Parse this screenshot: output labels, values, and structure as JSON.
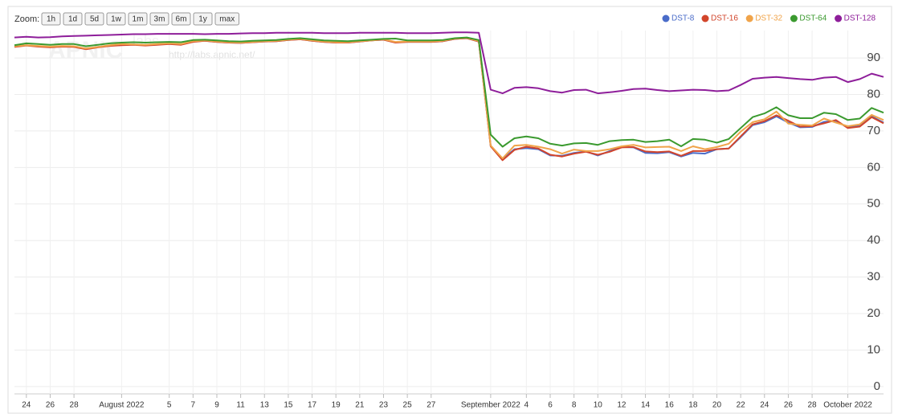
{
  "chart_data": {
    "type": "line",
    "zoom_label": "Zoom:",
    "zoom_buttons": [
      "1h",
      "1d",
      "5d",
      "1w",
      "1m",
      "3m",
      "6m",
      "1y",
      "max"
    ],
    "watermark": [
      "APNIC",
      "labs",
      "http://labs.apnic.net/"
    ],
    "legend": "top-right",
    "grid": true,
    "x": [
      "2022-07-23",
      "2022-07-24",
      "2022-07-25",
      "2022-07-26",
      "2022-07-27",
      "2022-07-28",
      "2022-07-29",
      "2022-07-30",
      "2022-07-31",
      "2022-08-01",
      "2022-08-02",
      "2022-08-03",
      "2022-08-04",
      "2022-08-05",
      "2022-08-06",
      "2022-08-07",
      "2022-08-08",
      "2022-08-09",
      "2022-08-10",
      "2022-08-11",
      "2022-08-12",
      "2022-08-13",
      "2022-08-14",
      "2022-08-15",
      "2022-08-16",
      "2022-08-17",
      "2022-08-18",
      "2022-08-19",
      "2022-08-20",
      "2022-08-21",
      "2022-08-22",
      "2022-08-23",
      "2022-08-24",
      "2022-08-25",
      "2022-08-26",
      "2022-08-27",
      "2022-08-28",
      "2022-08-29",
      "2022-08-30",
      "2022-08-31",
      "2022-09-01",
      "2022-09-02",
      "2022-09-03",
      "2022-09-04",
      "2022-09-05",
      "2022-09-06",
      "2022-09-07",
      "2022-09-08",
      "2022-09-09",
      "2022-09-10",
      "2022-09-11",
      "2022-09-12",
      "2022-09-13",
      "2022-09-14",
      "2022-09-15",
      "2022-09-16",
      "2022-09-17",
      "2022-09-18",
      "2022-09-19",
      "2022-09-20",
      "2022-09-21",
      "2022-09-22",
      "2022-09-23",
      "2022-09-24",
      "2022-09-25",
      "2022-09-26",
      "2022-09-27",
      "2022-09-28",
      "2022-09-29",
      "2022-09-30",
      "2022-10-01",
      "2022-10-02",
      "2022-10-03",
      "2022-10-04"
    ],
    "xlim": [
      "2022-07-23",
      "2022-10-04"
    ],
    "xticks": [
      {
        "value": "2022-07-24",
        "label": "24"
      },
      {
        "value": "2022-07-26",
        "label": "26"
      },
      {
        "value": "2022-07-28",
        "label": "28"
      },
      {
        "value": "2022-08-01",
        "label": "August 2022"
      },
      {
        "value": "2022-08-05",
        "label": "5"
      },
      {
        "value": "2022-08-07",
        "label": "7"
      },
      {
        "value": "2022-08-09",
        "label": "9"
      },
      {
        "value": "2022-08-11",
        "label": "11"
      },
      {
        "value": "2022-08-13",
        "label": "13"
      },
      {
        "value": "2022-08-15",
        "label": "15"
      },
      {
        "value": "2022-08-17",
        "label": "17"
      },
      {
        "value": "2022-08-19",
        "label": "19"
      },
      {
        "value": "2022-08-21",
        "label": "21"
      },
      {
        "value": "2022-08-23",
        "label": "23"
      },
      {
        "value": "2022-08-25",
        "label": "25"
      },
      {
        "value": "2022-08-27",
        "label": "27"
      },
      {
        "value": "2022-09-01",
        "label": "September 2022"
      },
      {
        "value": "2022-09-04",
        "label": "4"
      },
      {
        "value": "2022-09-06",
        "label": "6"
      },
      {
        "value": "2022-09-08",
        "label": "8"
      },
      {
        "value": "2022-09-10",
        "label": "10"
      },
      {
        "value": "2022-09-12",
        "label": "12"
      },
      {
        "value": "2022-09-14",
        "label": "14"
      },
      {
        "value": "2022-09-16",
        "label": "16"
      },
      {
        "value": "2022-09-18",
        "label": "18"
      },
      {
        "value": "2022-09-20",
        "label": "20"
      },
      {
        "value": "2022-09-22",
        "label": "22"
      },
      {
        "value": "2022-09-24",
        "label": "24"
      },
      {
        "value": "2022-09-26",
        "label": "26"
      },
      {
        "value": "2022-09-28",
        "label": "28"
      },
      {
        "value": "2022-10-01",
        "label": "October 2022"
      }
    ],
    "ylim": [
      -2,
      97.5
    ],
    "yticks": [
      0,
      10,
      20,
      30,
      40,
      50,
      60,
      70,
      80,
      90
    ],
    "series": [
      {
        "name": "DST-8",
        "color": "#4a6cc9",
        "values": [
          93.1,
          93.5,
          93.2,
          93.0,
          93.2,
          93.1,
          92.5,
          93.0,
          93.4,
          93.6,
          93.7,
          93.5,
          93.7,
          93.9,
          93.7,
          94.5,
          94.7,
          94.4,
          94.2,
          94.1,
          94.3,
          94.5,
          94.6,
          94.9,
          95.1,
          94.7,
          94.4,
          94.2,
          94.2,
          94.5,
          94.8,
          95.0,
          94.3,
          94.4,
          94.4,
          94.4,
          94.6,
          95.2,
          95.4,
          94.5,
          65.9,
          62.3,
          65.0,
          65.3,
          65.0,
          63.3,
          63.2,
          64.0,
          64.4,
          63.3,
          64.5,
          65.6,
          65.5,
          64.0,
          63.9,
          64.2,
          63.0,
          64.0,
          63.8,
          65.0,
          65.2,
          68.3,
          71.6,
          72.4,
          74.0,
          72.3,
          71.0,
          71.1,
          72.5,
          72.8,
          70.9,
          71.4,
          74.0,
          72.3
        ]
      },
      {
        "name": "DST-16",
        "color": "#d2452b",
        "values": [
          93.0,
          93.4,
          93.1,
          92.9,
          93.1,
          93.0,
          92.4,
          92.9,
          93.3,
          93.5,
          93.6,
          93.4,
          93.6,
          93.8,
          93.6,
          94.4,
          94.7,
          94.4,
          94.2,
          94.1,
          94.3,
          94.5,
          94.6,
          94.9,
          95.1,
          94.7,
          94.4,
          94.2,
          94.2,
          94.5,
          94.8,
          95.0,
          94.2,
          94.4,
          94.4,
          94.4,
          94.6,
          95.2,
          95.4,
          94.5,
          65.8,
          62.0,
          64.8,
          65.7,
          65.2,
          63.5,
          63.0,
          63.8,
          64.3,
          63.5,
          64.3,
          65.5,
          65.6,
          64.4,
          64.2,
          64.4,
          63.2,
          64.5,
          64.5,
          65.0,
          65.2,
          68.5,
          71.8,
          72.7,
          74.3,
          72.8,
          71.2,
          71.3,
          72.1,
          73.0,
          70.8,
          71.2,
          73.8,
          72.1
        ]
      },
      {
        "name": "DST-32",
        "color": "#f0a44a",
        "values": [
          93.2,
          93.5,
          93.3,
          93.1,
          93.3,
          93.2,
          92.6,
          93.0,
          93.5,
          93.8,
          93.7,
          93.6,
          93.8,
          94.0,
          93.8,
          94.6,
          94.8,
          94.5,
          94.3,
          94.2,
          94.4,
          94.6,
          94.7,
          95.0,
          95.2,
          94.8,
          94.5,
          94.3,
          94.3,
          94.6,
          94.8,
          95.1,
          94.4,
          94.5,
          94.5,
          94.5,
          94.7,
          95.3,
          95.5,
          94.6,
          66.0,
          62.5,
          66.0,
          66.2,
          65.7,
          65.0,
          63.8,
          64.9,
          64.5,
          64.5,
          65.0,
          65.8,
          66.2,
          65.5,
          65.6,
          65.7,
          64.5,
          65.8,
          65.0,
          65.6,
          66.5,
          69.8,
          72.4,
          73.2,
          75.3,
          72.0,
          71.7,
          71.5,
          73.4,
          72.3,
          71.3,
          71.8,
          74.4,
          73.0
        ]
      },
      {
        "name": "DST-64",
        "color": "#3b9a2f",
        "values": [
          93.5,
          94.0,
          93.8,
          93.6,
          93.8,
          93.8,
          93.2,
          93.6,
          94.0,
          94.2,
          94.3,
          94.2,
          94.3,
          94.4,
          94.3,
          94.9,
          95.0,
          94.8,
          94.6,
          94.5,
          94.7,
          94.8,
          94.9,
          95.2,
          95.4,
          95.1,
          94.8,
          94.7,
          94.6,
          94.8,
          95.0,
          95.2,
          95.3,
          94.8,
          94.8,
          94.8,
          94.9,
          95.4,
          95.6,
          94.9,
          69.0,
          65.7,
          68.0,
          68.5,
          68.0,
          66.5,
          66.0,
          66.6,
          66.7,
          66.2,
          67.2,
          67.5,
          67.6,
          67.0,
          67.2,
          67.6,
          65.8,
          67.8,
          67.6,
          66.8,
          67.8,
          70.8,
          73.8,
          74.8,
          76.5,
          74.3,
          73.5,
          73.5,
          75.0,
          74.6,
          73.0,
          73.4,
          76.3,
          75.0
        ]
      },
      {
        "name": "DST-128",
        "color": "#8e1e9a",
        "values": [
          95.6,
          95.8,
          95.6,
          95.7,
          95.9,
          96.0,
          96.1,
          96.2,
          96.3,
          96.4,
          96.5,
          96.5,
          96.6,
          96.6,
          96.6,
          96.6,
          96.5,
          96.6,
          96.6,
          96.7,
          96.8,
          96.8,
          96.9,
          96.9,
          96.9,
          96.9,
          96.8,
          96.8,
          96.8,
          96.9,
          96.9,
          96.9,
          96.9,
          96.8,
          96.8,
          96.8,
          96.9,
          97.0,
          97.0,
          96.9,
          81.3,
          80.3,
          81.8,
          82.0,
          81.7,
          80.9,
          80.5,
          81.2,
          81.3,
          80.3,
          80.6,
          81.0,
          81.5,
          81.6,
          81.2,
          80.9,
          81.1,
          81.3,
          81.2,
          80.9,
          81.1,
          82.6,
          84.3,
          84.6,
          84.8,
          84.5,
          84.2,
          84.0,
          84.6,
          84.8,
          83.4,
          84.2,
          85.7,
          84.8
        ]
      }
    ]
  }
}
